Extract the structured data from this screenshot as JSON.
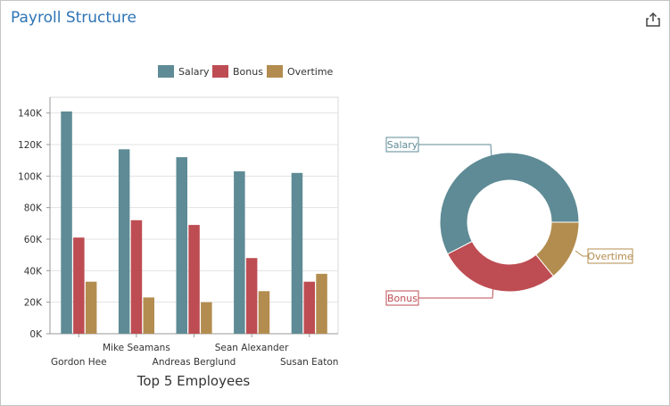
{
  "panel": {
    "title": "Payroll Structure",
    "export_icon": "share-export-icon"
  },
  "colors": {
    "salary": "#5e8b95",
    "bonus": "#bd4d53",
    "overtime": "#b38c4f",
    "title": "#2e74b5"
  },
  "legend": [
    {
      "label": "Salary",
      "color": "#5e8b95"
    },
    {
      "label": "Bonus",
      "color": "#bd4d53"
    },
    {
      "label": "Overtime",
      "color": "#b38c4f"
    }
  ],
  "chart_data": [
    {
      "type": "bar",
      "xlabel": "Top 5 Employees",
      "ylabel": "",
      "categories": [
        "Gordon Hee",
        "Mike Seamans",
        "Andreas Berglund",
        "Sean Alexander",
        "Susan Eaton"
      ],
      "series": [
        {
          "name": "Salary",
          "values": [
            141000,
            117000,
            112000,
            103000,
            102000
          ]
        },
        {
          "name": "Bonus",
          "values": [
            61000,
            72000,
            69000,
            48000,
            33000
          ]
        },
        {
          "name": "Overtime",
          "values": [
            33000,
            23000,
            20000,
            27000,
            38000
          ]
        }
      ],
      "ylim": [
        0,
        150000
      ],
      "yticks": [
        "0K",
        "20K",
        "40K",
        "60K",
        "80K",
        "100K",
        "120K",
        "140K"
      ],
      "grid": true,
      "legend": "top"
    },
    {
      "type": "pie",
      "donut": true,
      "labels": [
        "Salary",
        "Bonus",
        "Overtime"
      ],
      "values": [
        575000,
        283000,
        141000
      ]
    }
  ]
}
